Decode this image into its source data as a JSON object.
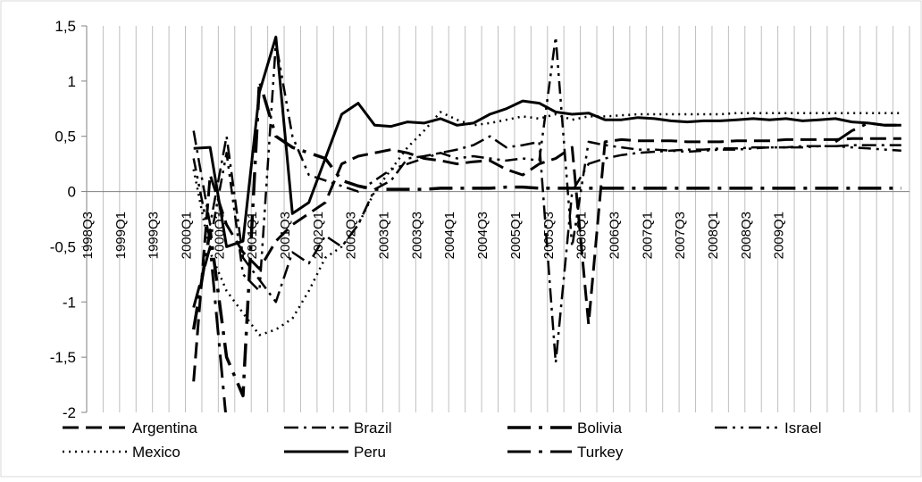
{
  "chart_data": {
    "type": "line",
    "title": "",
    "xlabel": "",
    "ylabel": "",
    "ylim": [
      -2,
      1.5
    ],
    "yticks": [
      "1,5",
      "1",
      "0,5",
      "0",
      "-0,5",
      "-1",
      "-1,5",
      "-2"
    ],
    "ytick_values": [
      1.5,
      1,
      0.5,
      0,
      -0.5,
      -1,
      -1.5,
      -2
    ],
    "categories": [
      "1998Q3",
      "1998Q4",
      "1999Q1",
      "1999Q2",
      "1999Q3",
      "1999Q4",
      "2000Q1",
      "2000Q2",
      "2000Q3",
      "2000Q4",
      "2001Q1",
      "2001Q2",
      "2001Q3",
      "2001Q4",
      "2002Q1",
      "2002Q2",
      "2002Q3",
      "2002Q4",
      "2003Q1",
      "2003Q2",
      "2003Q3",
      "2003Q4",
      "2004Q1",
      "2004Q2",
      "2004Q3",
      "2004Q4",
      "2005Q1",
      "2005Q2",
      "2005Q3",
      "2005Q4",
      "2006Q1",
      "2006Q2",
      "2006Q3",
      "2006Q4",
      "2007Q1",
      "2007Q2",
      "2007Q3",
      "2007Q4",
      "2008Q1",
      "2008Q2",
      "2008Q3",
      "2008Q4",
      "2009Q1",
      "2009Q2",
      "2009Q3",
      "2009Q4",
      "2010Q1",
      "2010Q2",
      "2010Q3",
      "2010Q4"
    ],
    "xtick_labels": [
      "1998Q3",
      "1999Q1",
      "1999Q3",
      "2000Q1",
      "2000Q3",
      "2001Q1",
      "2001Q3",
      "2002Q1",
      "2002Q3",
      "2003Q1",
      "2003Q3",
      "2004Q1",
      "2004Q3",
      "2005Q1",
      "2005Q3",
      "2006Q1",
      "2006Q3",
      "2007Q1",
      "2007Q3",
      "2008Q1",
      "2008Q3",
      "2009Q1"
    ],
    "legend_position": "bottom",
    "grid": "vertical",
    "series": [
      {
        "name": "Argentina",
        "style": "long-dash",
        "width": 3,
        "values": [
          null,
          null,
          null,
          null,
          null,
          null,
          -1.72,
          0.15,
          -0.3,
          -0.55,
          -0.7,
          -0.45,
          -0.3,
          -0.2,
          -0.1,
          0.25,
          0.32,
          0.35,
          0.38,
          0.35,
          0.3,
          0.28,
          0.25,
          0.27,
          0.28,
          0.2,
          0.15,
          0.25,
          0.3,
          0.4,
          -1.2,
          0.45,
          0.47,
          0.46,
          0.46,
          0.46,
          0.45,
          0.45,
          0.45,
          0.46,
          0.46,
          0.46,
          0.47,
          0.47,
          0.47,
          0.47,
          0.48,
          0.48,
          0.48,
          0.48
        ]
      },
      {
        "name": "Brazil",
        "style": "dash-dot",
        "width": 2.5,
        "values": [
          null,
          null,
          null,
          null,
          null,
          null,
          0.55,
          -0.3,
          0.5,
          -0.6,
          -0.8,
          -1.0,
          -0.55,
          -0.65,
          -0.4,
          -0.5,
          -0.3,
          0.02,
          0.1,
          0.3,
          0.32,
          0.35,
          0.38,
          0.42,
          0.5,
          0.4,
          0.42,
          0.45,
          -1.55,
          0.0,
          0.25,
          0.3,
          0.33,
          0.35,
          0.36,
          0.37,
          0.38,
          0.38,
          0.39,
          0.39,
          0.4,
          0.4,
          0.4,
          0.41,
          0.41,
          0.41,
          0.42,
          0.42,
          0.42,
          0.42
        ]
      },
      {
        "name": "Bolivia",
        "style": "long-dash-dot",
        "width": 3.5,
        "values": [
          null,
          null,
          null,
          null,
          null,
          null,
          -1.25,
          -0.35,
          -1.5,
          -1.85,
          1.0,
          0.5,
          0.4,
          0.35,
          0.3,
          0.1,
          0.05,
          0.02,
          0.02,
          0.02,
          0.02,
          0.03,
          0.03,
          0.03,
          0.03,
          0.04,
          0.04,
          0.03,
          0.03,
          0.03,
          0.03,
          0.03,
          0.03,
          0.03,
          0.03,
          0.03,
          0.03,
          0.03,
          0.03,
          0.03,
          0.03,
          0.03,
          0.03,
          0.03,
          0.03,
          0.03,
          0.03,
          0.03,
          0.03,
          0.03
        ]
      },
      {
        "name": "Israel",
        "style": "dash-dot-dot",
        "width": 2.5,
        "values": [
          null,
          null,
          null,
          null,
          null,
          null,
          0.3,
          -0.45,
          0.35,
          -0.75,
          -0.9,
          1.35,
          0.5,
          0.15,
          0.1,
          0.05,
          0.0,
          0.1,
          0.2,
          0.25,
          0.3,
          0.35,
          0.3,
          0.32,
          0.3,
          0.28,
          0.3,
          0.28,
          1.4,
          -0.5,
          0.45,
          0.42,
          0.4,
          0.38,
          0.38,
          0.37,
          0.36,
          0.37,
          0.38,
          0.38,
          0.39,
          0.4,
          0.4,
          0.4,
          0.41,
          0.41,
          0.4,
          0.39,
          0.38,
          0.37
        ]
      },
      {
        "name": "Mexico",
        "style": "dotted",
        "width": 2.5,
        "values": [
          null,
          null,
          null,
          null,
          null,
          null,
          0.2,
          -0.55,
          -0.9,
          -1.1,
          -1.3,
          -1.25,
          -1.15,
          -0.9,
          -0.6,
          -0.5,
          -0.3,
          0.0,
          0.2,
          0.4,
          0.55,
          0.72,
          0.65,
          0.6,
          0.62,
          0.65,
          0.68,
          0.66,
          0.7,
          0.65,
          0.68,
          0.68,
          0.69,
          0.7,
          0.7,
          0.7,
          0.7,
          0.7,
          0.7,
          0.71,
          0.71,
          0.71,
          0.71,
          0.71,
          0.71,
          0.71,
          0.71,
          0.71,
          0.71,
          0.71
        ]
      },
      {
        "name": "Peru",
        "style": "solid",
        "width": 3,
        "values": [
          null,
          null,
          null,
          null,
          null,
          null,
          0.39,
          0.4,
          -0.5,
          -0.45,
          0.9,
          1.4,
          -0.2,
          -0.1,
          0.3,
          0.7,
          0.8,
          0.6,
          0.59,
          0.63,
          0.62,
          0.66,
          0.6,
          0.62,
          0.7,
          0.75,
          0.82,
          0.8,
          0.72,
          0.7,
          0.71,
          0.65,
          0.65,
          0.67,
          0.66,
          0.64,
          0.63,
          0.64,
          0.64,
          0.65,
          0.66,
          0.65,
          0.66,
          0.64,
          0.65,
          0.66,
          0.63,
          0.62,
          0.6,
          0.6
        ]
      },
      {
        "name": "Turkey",
        "style": "long-dash-dot",
        "width": 3,
        "values": [
          null,
          null,
          null,
          null,
          null,
          null,
          -1.05,
          -0.5,
          -2.1,
          null,
          -2.05,
          null,
          null,
          null,
          null,
          null,
          null,
          null,
          null,
          null,
          null,
          null,
          null,
          null,
          null,
          null,
          null,
          null,
          null,
          null,
          null,
          null,
          null,
          null,
          null,
          null,
          null,
          null,
          null,
          null,
          null,
          null,
          null,
          null,
          null,
          0.45,
          0.55,
          0.62,
          0.6,
          0.6
        ]
      }
    ]
  }
}
